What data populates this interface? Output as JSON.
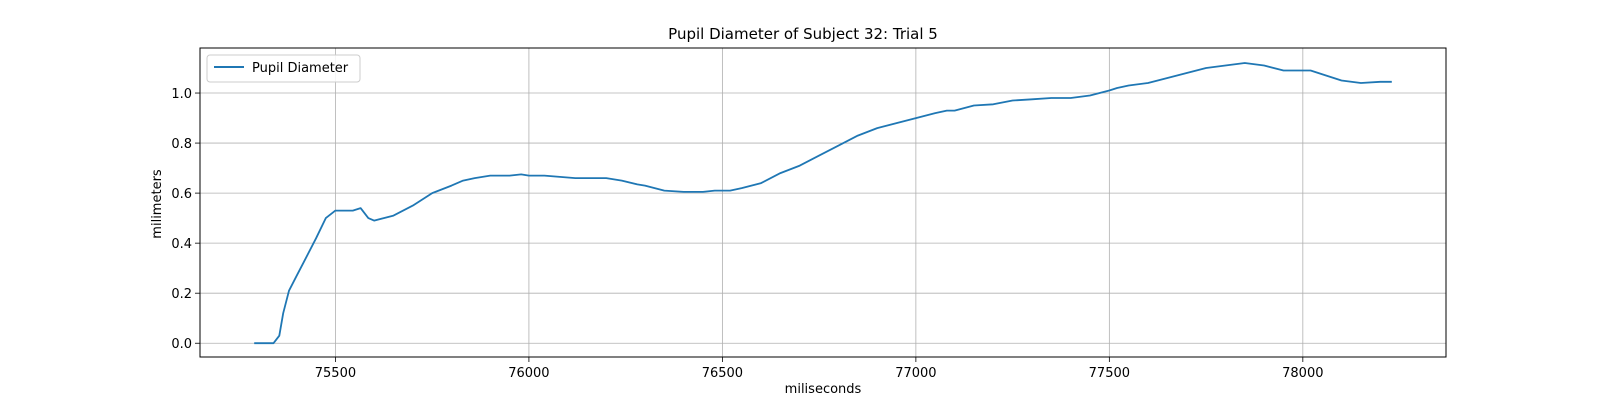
{
  "chart_data": {
    "type": "line",
    "title": "Pupil Diameter of Subject 32: Trial 5",
    "xlabel": "miliseconds",
    "ylabel": "milimeters",
    "xlim": [
      75150,
      78370
    ],
    "ylim": [
      -0.055,
      1.18
    ],
    "grid": true,
    "legend_position": "top-left",
    "x_ticks": [
      75500,
      76000,
      76500,
      77000,
      77500,
      78000
    ],
    "x_tick_labels": [
      "75500",
      "76000",
      "76500",
      "77000",
      "77500",
      "78000"
    ],
    "y_ticks": [
      0.0,
      0.2,
      0.4,
      0.6,
      0.8,
      1.0
    ],
    "y_tick_labels": [
      "0.0",
      "0.2",
      "0.4",
      "0.6",
      "0.8",
      "1.0"
    ],
    "series": [
      {
        "name": "Pupil Diameter",
        "color": "#1f77b4",
        "x": [
          75290,
          75340,
          75355,
          75365,
          75380,
          75400,
          75420,
          75450,
          75475,
          75500,
          75520,
          75545,
          75565,
          75585,
          75600,
          75625,
          75650,
          75700,
          75750,
          75800,
          75830,
          75860,
          75900,
          75950,
          75980,
          76000,
          76040,
          76080,
          76120,
          76160,
          76200,
          76240,
          76280,
          76300,
          76350,
          76400,
          76450,
          76480,
          76520,
          76550,
          76600,
          76650,
          76700,
          76750,
          76800,
          76850,
          76900,
          76950,
          77000,
          77050,
          77080,
          77100,
          77150,
          77200,
          77250,
          77300,
          77350,
          77400,
          77450,
          77500,
          77520,
          77550,
          77600,
          77650,
          77700,
          77750,
          77800,
          77850,
          77900,
          77950,
          78000,
          78020,
          78060,
          78100,
          78150,
          78200,
          78230
        ],
        "values": [
          0.0,
          0.0,
          0.03,
          0.12,
          0.21,
          0.27,
          0.33,
          0.42,
          0.5,
          0.53,
          0.53,
          0.53,
          0.54,
          0.5,
          0.49,
          0.5,
          0.51,
          0.55,
          0.6,
          0.63,
          0.65,
          0.66,
          0.67,
          0.67,
          0.675,
          0.67,
          0.67,
          0.665,
          0.66,
          0.66,
          0.66,
          0.65,
          0.635,
          0.63,
          0.61,
          0.605,
          0.605,
          0.61,
          0.61,
          0.62,
          0.64,
          0.68,
          0.71,
          0.75,
          0.79,
          0.83,
          0.86,
          0.88,
          0.9,
          0.92,
          0.93,
          0.93,
          0.95,
          0.955,
          0.97,
          0.975,
          0.98,
          0.98,
          0.99,
          1.01,
          1.02,
          1.03,
          1.04,
          1.06,
          1.08,
          1.1,
          1.11,
          1.12,
          1.11,
          1.09,
          1.09,
          1.09,
          1.07,
          1.05,
          1.04,
          1.045,
          1.045
        ]
      }
    ]
  }
}
